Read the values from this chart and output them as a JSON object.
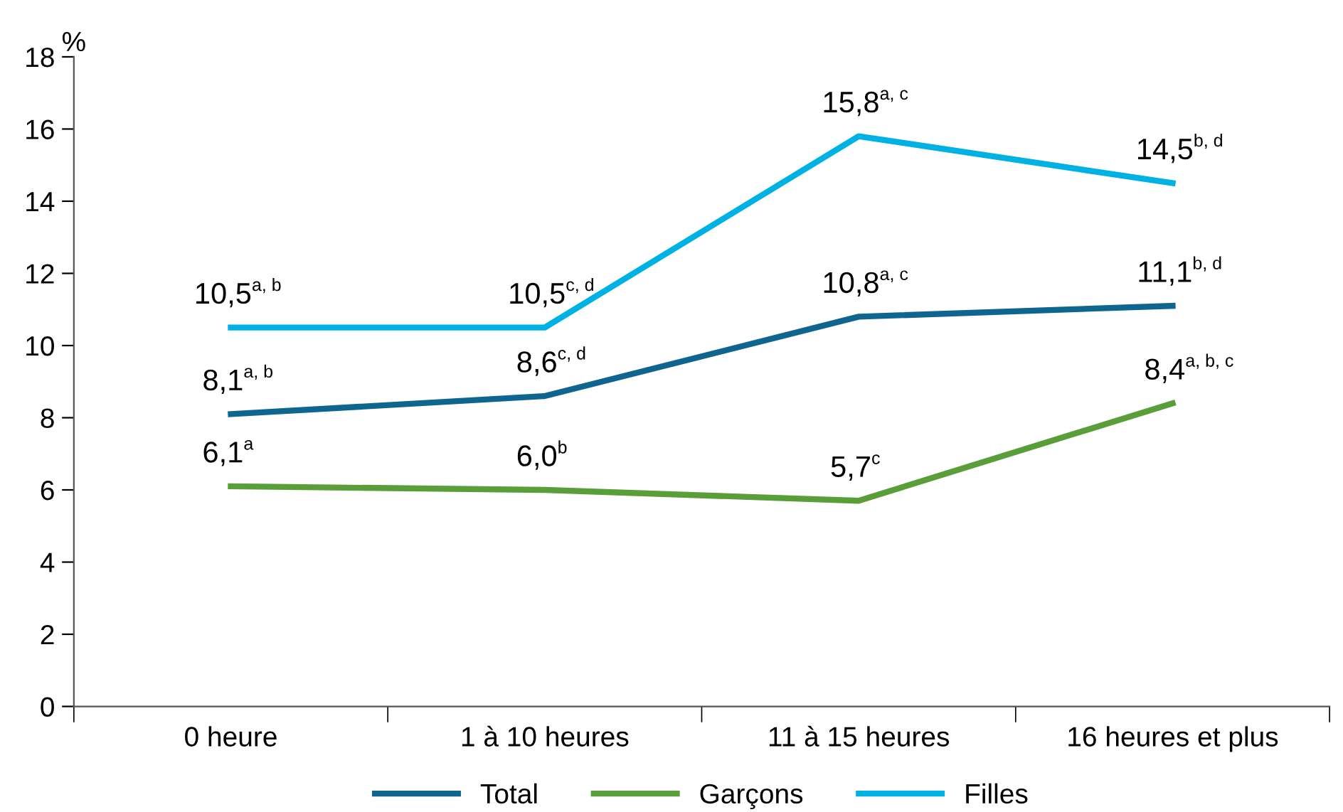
{
  "chart_data": {
    "type": "line",
    "ylabel": "%",
    "categories": [
      "0 heure",
      "1 à 10 heures",
      "11 à 15 heures",
      "16 heures et plus"
    ],
    "series": [
      {
        "name": "Total",
        "color": "#0e6590",
        "values": [
          8.1,
          8.6,
          10.8,
          11.1
        ],
        "value_labels": [
          "8,1$^{a, b}$",
          "8,6$^{c, d}$",
          "10,8$^{a, c}$",
          "11,1$^{b, d}$"
        ]
      },
      {
        "name": "Garçons",
        "color": "#5a9e3a",
        "values": [
          6.1,
          6.0,
          5.7,
          8.4
        ],
        "value_labels": [
          "6,1$^{a}$",
          "6,0$^{b}$",
          "5,7$^{c}$",
          "8,4$^{a, b, c}$"
        ]
      },
      {
        "name": "Filles",
        "color": "#00b2e3",
        "values": [
          10.5,
          10.5,
          15.8,
          14.5
        ],
        "value_labels": [
          "10,5$^{a, b}$",
          "10,5$^{c, d}$",
          "15,8$^{a, c}$",
          "14,5$^{b, d}$"
        ]
      }
    ],
    "ylim": [
      0,
      18
    ],
    "yticks": [
      0,
      2,
      4,
      6,
      8,
      10,
      12,
      14,
      16,
      18
    ],
    "grid": false,
    "legend": "bottom",
    "marker": "none",
    "line_style": "solid"
  }
}
